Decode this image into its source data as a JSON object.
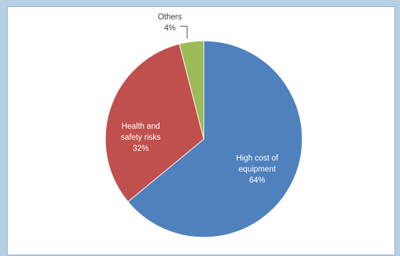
{
  "chart_data": {
    "type": "pie",
    "slices": [
      {
        "label": "High cost of equipment",
        "value": 64,
        "display": [
          "High cost of",
          "equipment",
          "64%"
        ],
        "color": "#4f81bd"
      },
      {
        "label": "Health and safety risks",
        "value": 32,
        "display": [
          "Health and",
          "safety risks",
          "32%"
        ],
        "color": "#c0504d"
      },
      {
        "label": "Others",
        "value": 4,
        "display": [
          "Others",
          "4%"
        ],
        "color": "#9bbb59"
      }
    ]
  }
}
